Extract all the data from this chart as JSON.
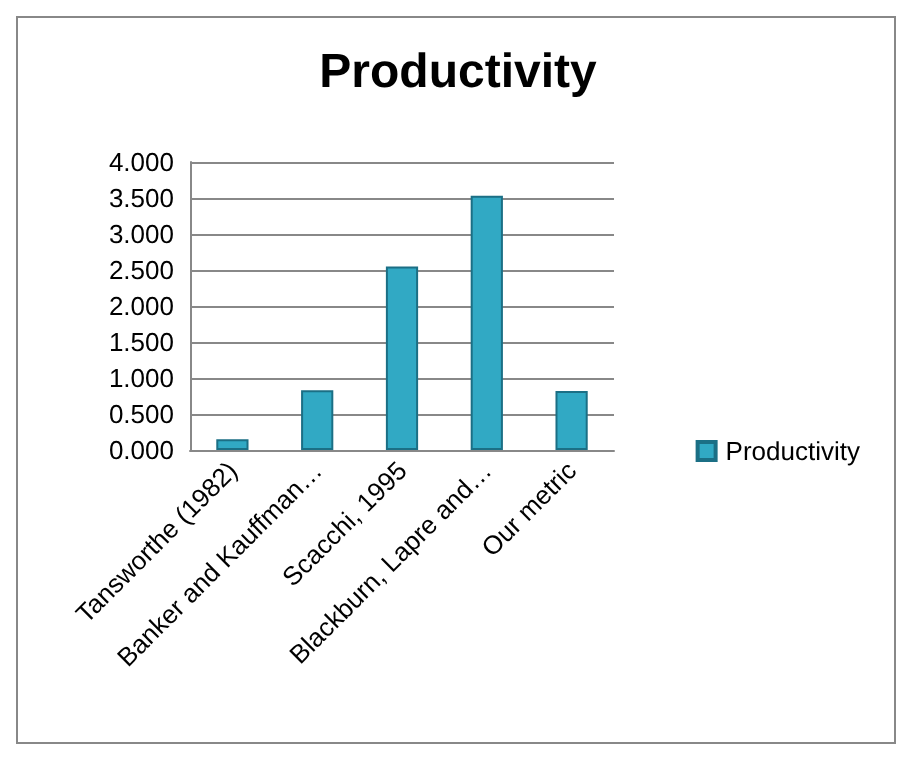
{
  "chart_data": {
    "type": "bar",
    "title": "Productivity",
    "categories": [
      "Tansworthe (1982)",
      "Banker and Kauffman…",
      "Scacchi, 1995",
      "Blackburn, Lapre and…",
      "Our metric"
    ],
    "series": [
      {
        "name": "Productivity",
        "color": "#31a9c4",
        "values": [
          0.15,
          0.83,
          2.55,
          3.53,
          0.82
        ]
      }
    ],
    "ylim": [
      0,
      4
    ],
    "yticks": [
      {
        "value": 0,
        "label": "0.000"
      },
      {
        "value": 0.5,
        "label": "0.500"
      },
      {
        "value": 1,
        "label": "1.000"
      },
      {
        "value": 1.5,
        "label": "1.500"
      },
      {
        "value": 2,
        "label": "2.000"
      },
      {
        "value": 2.5,
        "label": "2.500"
      },
      {
        "value": 3,
        "label": "3.000"
      },
      {
        "value": 3.5,
        "label": "3.500"
      },
      {
        "value": 4,
        "label": "4.000"
      }
    ],
    "grid": "y",
    "legend": "right"
  }
}
